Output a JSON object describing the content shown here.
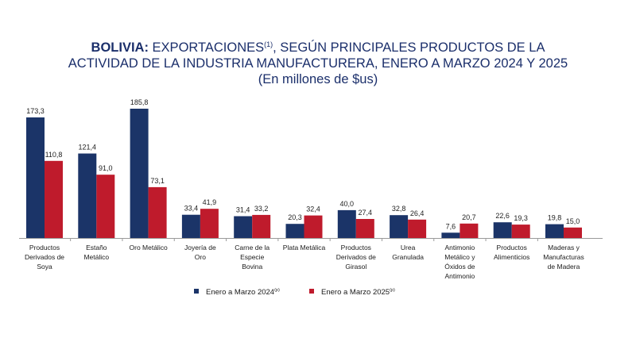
{
  "title": {
    "country": "BOLIVIA:",
    "line1": "EXPORTACIONES",
    "footnote_mark": "(1)",
    "line1_rest": ", SEGÚN PRINCIPALES PRODUCTOS DE LA",
    "line2": "ACTIVIDAD DE LA INDUSTRIA MANUFACTURERA, ENERO A MARZO 2024 Y 2025",
    "line3": "(En millones de $us)"
  },
  "colors": {
    "series_2024": "#1b3468",
    "series_2025": "#bf1b2c",
    "axis": "#9a9a9a"
  },
  "legend": [
    {
      "label": "Enero a Marzo  2024",
      "mark": "(p)"
    },
    {
      "label": "Enero a Marzo  2025",
      "mark": "(p)"
    }
  ],
  "chart_data": {
    "type": "bar",
    "title": "BOLIVIA: EXPORTACIONES(1), SEGÚN PRINCIPALES PRODUCTOS DE LA ACTIVIDAD DE LA INDUSTRIA MANUFACTURERA, ENERO A MARZO 2024 Y 2025",
    "subtitle": "(En millones de $us)",
    "categories": [
      "Productos Derivados de Soya",
      "Estaño Metálico",
      "Oro Metálico",
      "Joyería de Oro",
      "Carne de la Especie Bovina",
      "Plata Metálica",
      "Productos Derivados de Girasol",
      "Urea Granulada",
      "Antimonio Metálico y Óxidos de Antimonio",
      "Productos Alimenticios",
      "Maderas y Manufacturas de Madera"
    ],
    "series": [
      {
        "name": "Enero a Marzo 2024(p)",
        "values": [
          173.3,
          121.4,
          185.8,
          33.4,
          31.4,
          20.3,
          40.0,
          32.8,
          7.6,
          22.6,
          19.8
        ],
        "labels": [
          "173,3",
          "121,4",
          "185,8",
          "33,4",
          "31,4",
          "20,3",
          "40,0",
          "32,8",
          "7,6",
          "22,6",
          "19,8"
        ]
      },
      {
        "name": "Enero a Marzo 2025(p)",
        "values": [
          110.8,
          91.0,
          73.1,
          41.9,
          33.2,
          32.4,
          27.4,
          26.4,
          20.7,
          19.3,
          15.0
        ],
        "labels": [
          "110,8",
          "91,0",
          "73,1",
          "41,9",
          "33,2",
          "32,4",
          "27,4",
          "26,4",
          "20,7",
          "19,3",
          "15,0"
        ]
      }
    ],
    "category_lines": [
      [
        "Productos",
        "Derivados de",
        "Soya"
      ],
      [
        "Estaño",
        "Metálico"
      ],
      [
        "Oro Metálico"
      ],
      [
        "Joyería de",
        "Oro"
      ],
      [
        "Carne de la",
        "Especie",
        "Bovina"
      ],
      [
        "Plata Metálica"
      ],
      [
        "Productos",
        "Derivados de",
        "Girasol"
      ],
      [
        "Urea",
        "Granulada"
      ],
      [
        "Antimonio",
        "Metálico y",
        "Óxidos de",
        "Antimonio"
      ],
      [
        "Productos",
        "Alimenticios"
      ],
      [
        "Maderas y",
        "Manufacturas",
        "de Madera"
      ]
    ],
    "ylim": [
      0,
      185.8
    ],
    "grid": false,
    "legend_position": "bottom",
    "xlabel": "",
    "ylabel": ""
  }
}
